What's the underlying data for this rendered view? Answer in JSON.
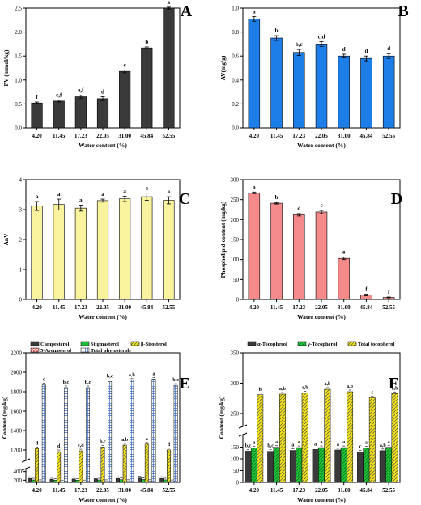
{
  "categories": [
    "4.20",
    "11.45",
    "17.23",
    "22.05",
    "31.00",
    "45.84",
    "52.55"
  ],
  "chart_data": [
    {
      "id": "A",
      "type": "bar",
      "letter": "A",
      "ylabel": "PV (mmol/kg)",
      "xlabel": "Water content (%)",
      "ylim": [
        0,
        2.5
      ],
      "yticks": [
        "0.0",
        "0.5",
        "1.0",
        "1.5",
        "2.0",
        "2.5"
      ],
      "color": "#3a3a3a",
      "values": [
        0.52,
        0.56,
        0.65,
        0.61,
        1.18,
        1.67,
        2.5
      ],
      "errors": [
        0.02,
        0.02,
        0.03,
        0.04,
        0.03,
        0.02,
        0.02
      ],
      "labels": [
        "f",
        "e,f",
        "e,f",
        "d",
        "c",
        "b",
        "a"
      ]
    },
    {
      "id": "B",
      "type": "bar",
      "letter": "B",
      "ylabel": "AV(mg/g)",
      "xlabel": "Water content (%)",
      "ylim": [
        0,
        1.0
      ],
      "yticks": [
        "0.0",
        "0.2",
        "0.4",
        "0.6",
        "0.8",
        "1.0"
      ],
      "color": "#1e7ee8",
      "values": [
        0.91,
        0.75,
        0.63,
        0.7,
        0.6,
        0.58,
        0.6
      ],
      "errors": [
        0.02,
        0.02,
        0.025,
        0.02,
        0.015,
        0.02,
        0.02
      ],
      "labels": [
        "a",
        "b",
        "b,c",
        "c,d",
        "d",
        "d",
        "d"
      ]
    },
    {
      "id": "C",
      "type": "bar",
      "letter": "C",
      "ylabel": "AnV",
      "xlabel": "Water content (%)",
      "ylim": [
        0,
        4
      ],
      "yticks": [
        "0",
        "1",
        "2",
        "3",
        "4"
      ],
      "color": "#f8f39c",
      "values": [
        3.12,
        3.17,
        3.05,
        3.3,
        3.36,
        3.43,
        3.31
      ],
      "errors": [
        0.15,
        0.18,
        0.1,
        0.05,
        0.09,
        0.12,
        0.12
      ],
      "labels": [
        "a",
        "a",
        "a",
        "a",
        "a",
        "a",
        "a"
      ]
    },
    {
      "id": "D",
      "type": "bar",
      "letter": "D",
      "ylabel": "Phospholipid content (mg/kg)",
      "xlabel": "Water content (%)",
      "ylim": [
        0,
        300
      ],
      "yticks": [
        "0",
        "50",
        "100",
        "150",
        "200",
        "250",
        "300"
      ],
      "color": "#f48a8a",
      "values": [
        267,
        241,
        212,
        219,
        103,
        11,
        5
      ],
      "errors": [
        2,
        2,
        3,
        4,
        3,
        2,
        1
      ],
      "labels": [
        "a",
        "b",
        "d",
        "c",
        "e",
        "f",
        "f"
      ]
    },
    {
      "id": "E",
      "type": "grouped_broken_bar",
      "letter": "E",
      "ylabel": "Content (mg/kg)",
      "xlabel": "Water content (%)",
      "lower_ticks": [
        "200",
        "400"
      ],
      "upper_ticks": [
        "1200",
        "1400",
        "1600",
        "1800",
        "2000",
        "2200"
      ],
      "series": [
        {
          "name": "Campesterol",
          "color": "#3a3a3a",
          "values": [
            241,
            225,
            228,
            234,
            241,
            249,
            241
          ],
          "labels": [
            "",
            "",
            "",
            "",
            "",
            "",
            ""
          ]
        },
        {
          "name": "Stigmasterol",
          "color": "#1fbf3a",
          "values": [
            206,
            199,
            201,
            206,
            212,
            216,
            208
          ],
          "labels": [
            "",
            "",
            "",
            "",
            "",
            "",
            ""
          ]
        },
        {
          "name": "β-Sitosterol",
          "color": "#f2e21a",
          "values": [
            1213,
            1183,
            1191,
            1231,
            1250,
            1260,
            1201
          ],
          "labels": [
            "d",
            "d",
            "c,d",
            "b,c",
            "a,b",
            "a",
            "d"
          ]
        },
        {
          "name": "5-Avenasterol",
          "color": "#e34b4b",
          "values": [
            170,
            163,
            165,
            170,
            171,
            172,
            168
          ],
          "labels": [
            "",
            "",
            "",
            "",
            "",
            "",
            ""
          ]
        },
        {
          "name": "Total phytosterols",
          "color": "#7a9fd6",
          "values": [
            1869,
            1842,
            1842,
            1904,
            1918,
            1930,
            1866
          ],
          "labels": [
            "c",
            "b,c",
            "b,c",
            "b,c",
            "a,b",
            "a",
            "b,c"
          ]
        }
      ]
    },
    {
      "id": "F",
      "type": "grouped_broken_bar",
      "letter": "F",
      "ylabel": "Content (mg/kg)",
      "xlabel": "Water content (%)",
      "lower_ticks": [
        "0",
        "50",
        "100",
        "150"
      ],
      "upper_ticks": [
        "250",
        "300",
        "350"
      ],
      "series": [
        {
          "name": "α-Tocopherol",
          "color": "#3a3a3a",
          "values": [
            133,
            132,
            136,
            140,
            138,
            130,
            135
          ],
          "labels": [
            "b,c",
            "b,c",
            "a",
            "a",
            "a",
            "c",
            "a,b"
          ]
        },
        {
          "name": "γ-Tocopherol",
          "color": "#1fbf3a",
          "values": [
            147,
            149,
            148,
            148,
            148,
            147,
            149
          ],
          "labels": [
            "a",
            "a",
            "a",
            "a",
            "a",
            "a",
            "a"
          ]
        },
        {
          "name": "Total tocopherol",
          "color": "#f2e21a",
          "values": [
            281,
            282,
            284,
            290,
            286,
            276,
            283
          ],
          "labels": [
            "b",
            "a,b",
            "a,b",
            "a,b",
            "a,b",
            "c",
            "a,b"
          ]
        }
      ]
    }
  ]
}
